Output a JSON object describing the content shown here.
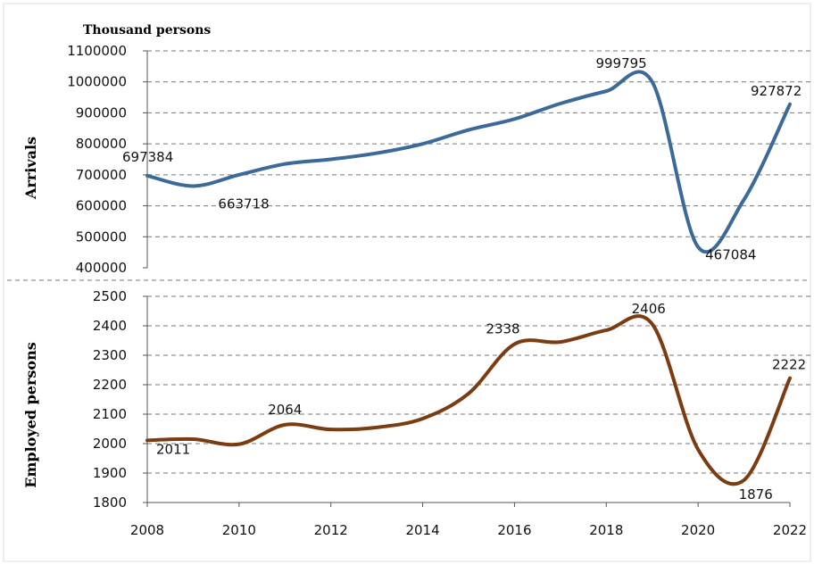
{
  "chart_data": [
    {
      "type": "line",
      "unit_label": "Thousand persons",
      "ylabel": "Arrivals",
      "ylim": [
        400000,
        1100000
      ],
      "yticks": [
        "400000",
        "500000",
        "600000",
        "700000",
        "800000",
        "900000",
        "1000000",
        "1100000"
      ],
      "grid": true,
      "color": "#3b6a9a",
      "series": [
        {
          "x": [
            2008,
            2009,
            2010,
            2011,
            2012,
            2013,
            2014,
            2015,
            2016,
            2017,
            2018,
            2019,
            2020,
            2021,
            2022
          ],
          "values": [
            697384,
            663718,
            700000,
            735000,
            750000,
            770000,
            800000,
            845000,
            880000,
            930000,
            970000,
            999795,
            467084,
            620000,
            927872
          ]
        }
      ],
      "data_labels": [
        "697384",
        "663718",
        "999795",
        "467084",
        "927872"
      ]
    },
    {
      "type": "line",
      "ylabel": "Employed persons",
      "ylim": [
        1800,
        2500
      ],
      "yticks": [
        "1800",
        "1900",
        "2000",
        "2100",
        "2200",
        "2300",
        "2400",
        "2500"
      ],
      "xticks": [
        "2008",
        "2010",
        "2012",
        "2014",
        "2016",
        "2018",
        "2020",
        "2022"
      ],
      "grid": true,
      "color": "#7a3c10",
      "series": [
        {
          "x": [
            2008,
            2009,
            2010,
            2011,
            2012,
            2013,
            2014,
            2015,
            2016,
            2017,
            2018,
            2019,
            2020,
            2021,
            2022
          ],
          "values": [
            2011,
            2015,
            1998,
            2064,
            2048,
            2055,
            2085,
            2170,
            2338,
            2345,
            2385,
            2406,
            1980,
            1876,
            2222
          ]
        }
      ],
      "data_labels": [
        "2011",
        "2064",
        "2338",
        "2406",
        "1876",
        "2222"
      ]
    }
  ]
}
